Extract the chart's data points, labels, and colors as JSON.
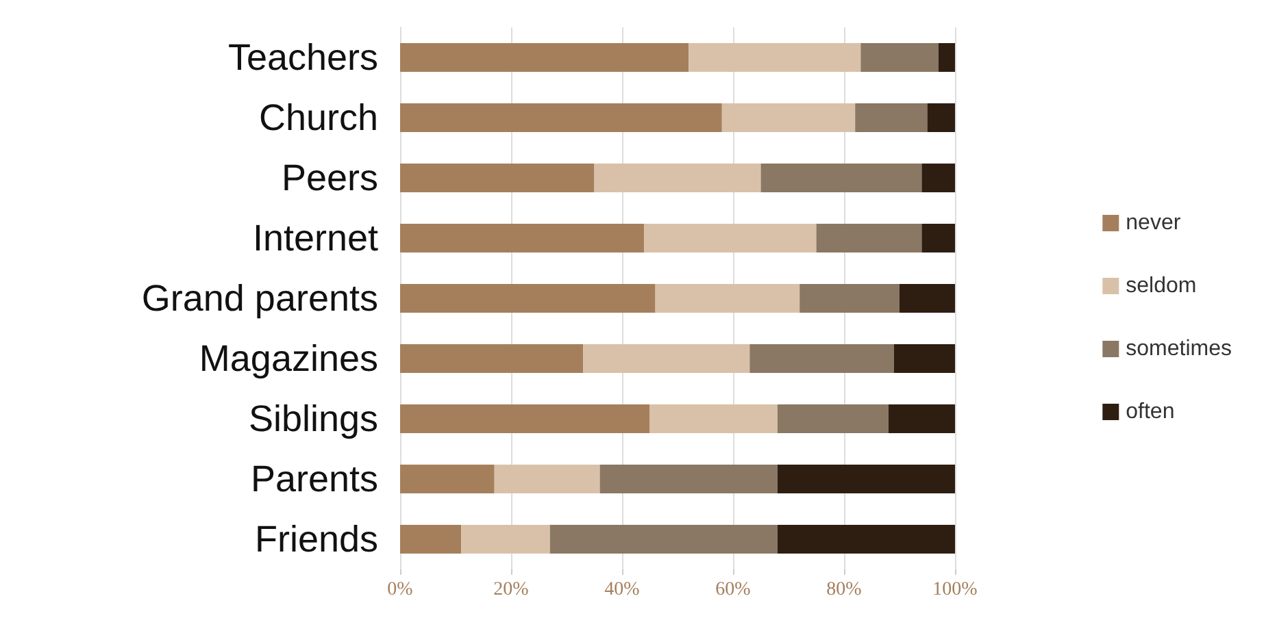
{
  "chart_data": {
    "type": "bar",
    "orientation": "horizontal",
    "stacked": true,
    "categories": [
      "Teachers",
      "Church",
      "Peers",
      "Internet",
      "Grand parents",
      "Magazines",
      "Siblings",
      "Parents",
      "Friends"
    ],
    "series": [
      {
        "name": "never",
        "color": "#a57f5c",
        "values": [
          52,
          58,
          35,
          44,
          46,
          33,
          45,
          17,
          11
        ]
      },
      {
        "name": "seldom",
        "color": "#d9c1a9",
        "values": [
          31,
          24,
          30,
          31,
          26,
          30,
          23,
          19,
          16
        ]
      },
      {
        "name": "sometimes",
        "color": "#8a7864",
        "values": [
          14,
          13,
          29,
          19,
          18,
          26,
          20,
          32,
          41
        ]
      },
      {
        "name": "often",
        "color": "#2e1e12",
        "values": [
          3,
          5,
          6,
          6,
          10,
          11,
          12,
          32,
          32
        ]
      }
    ],
    "xlim": [
      0,
      100
    ],
    "xticks": [
      {
        "value": 0,
        "label": "0%"
      },
      {
        "value": 20,
        "label": "20%"
      },
      {
        "value": 40,
        "label": "40%"
      },
      {
        "value": 60,
        "label": "60%"
      },
      {
        "value": 80,
        "label": "80%"
      },
      {
        "value": 100,
        "label": "100%"
      }
    ],
    "grid": "x",
    "legend": "right"
  }
}
